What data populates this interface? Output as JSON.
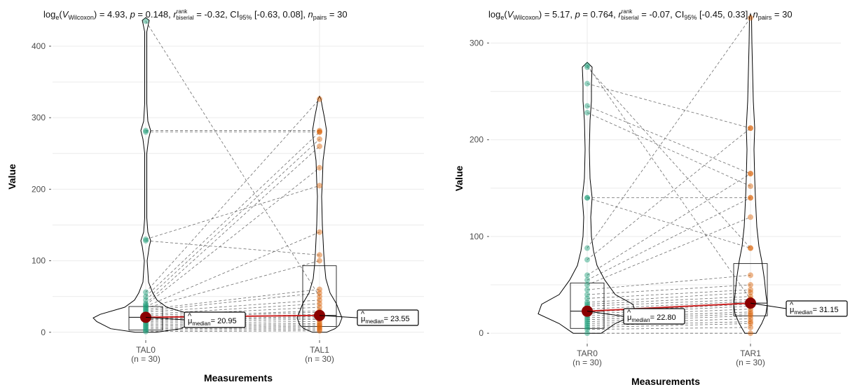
{
  "charts": [
    {
      "title": {
        "stat_prefix": "log",
        "stat_base": "e",
        "stat_symbol": "V",
        "stat_sub": "Wilcoxon",
        "stat_value": ") = 4.93, ",
        "p_label": "p",
        "p_value": " = 0.148, ",
        "r_hat": "r",
        "r_sup": "rank",
        "r_sub": "biserial",
        "r_value": " = -0.32, CI",
        "ci_sub": "95%",
        "ci_value": " [-0.63, 0.08], ",
        "n_label": "n",
        "n_sub": "pairs",
        "n_value": " = 30"
      },
      "xlabel": "Measurements",
      "ylabel": "Value",
      "groups": [
        {
          "name": "TAL0",
          "n_label": "(n = 30)",
          "color": "#1b9e77",
          "median_label": "= 20.95",
          "mu": "μ",
          "mu_sub": "median"
        },
        {
          "name": "TAL1",
          "n_label": "(n = 30)",
          "color": "#d95f02",
          "median_label": "= 23.55",
          "mu": "μ",
          "mu_sub": "median"
        }
      ]
    },
    {
      "title": {
        "stat_prefix": "log",
        "stat_base": "e",
        "stat_symbol": "V",
        "stat_sub": "Wilcoxon",
        "stat_value": ") = 5.17, ",
        "p_label": "p",
        "p_value": " = 0.764, ",
        "r_hat": "r",
        "r_sup": "rank",
        "r_sub": "biserial",
        "r_value": " = -0.07, CI",
        "ci_sub": "95%",
        "ci_value": " [-0.45, 0.33], ",
        "n_label": "n",
        "n_sub": "pairs",
        "n_value": " = 30"
      },
      "xlabel": "Measurements",
      "ylabel": "Value",
      "groups": [
        {
          "name": "TAR0",
          "n_label": "(n = 30)",
          "color": "#1b9e77",
          "median_label": "= 22.80",
          "mu": "μ",
          "mu_sub": "median"
        },
        {
          "name": "TAR1",
          "n_label": "(n = 30)",
          "color": "#d95f02",
          "median_label": "= 31.15",
          "mu": "μ",
          "mu_sub": "median"
        }
      ]
    }
  ],
  "chart_data": [
    {
      "type": "violin-paired",
      "ylim": [
        -10,
        445
      ],
      "yticks": [
        0,
        100,
        200,
        300,
        400
      ],
      "grid": true,
      "medians": [
        20.95,
        23.55
      ],
      "boxes": [
        {
          "q1": 3,
          "median": 20.95,
          "q3": 36
        },
        {
          "q1": 8,
          "median": 23.55,
          "q3": 93
        }
      ],
      "pairs": [
        [
          435,
          50
        ],
        [
          282,
          282
        ],
        [
          280,
          280
        ],
        [
          130,
          205
        ],
        [
          128,
          108
        ],
        [
          56,
          326
        ],
        [
          50,
          280
        ],
        [
          45,
          270
        ],
        [
          40,
          260
        ],
        [
          38,
          230
        ],
        [
          36,
          140
        ],
        [
          34,
          100
        ],
        [
          32,
          60
        ],
        [
          30,
          55
        ],
        [
          28,
          45
        ],
        [
          25,
          40
        ],
        [
          23,
          35
        ],
        [
          21,
          30
        ],
        [
          20,
          28
        ],
        [
          19,
          25
        ],
        [
          18,
          22
        ],
        [
          17,
          20
        ],
        [
          15,
          18
        ],
        [
          13,
          15
        ],
        [
          11,
          12
        ],
        [
          9,
          10
        ],
        [
          7,
          8
        ],
        [
          5,
          6
        ],
        [
          3,
          4
        ],
        [
          1,
          2
        ]
      ],
      "violins": [
        [
          [
            0,
            15
          ],
          [
            5,
            50
          ],
          [
            10,
            60
          ],
          [
            15,
            70
          ],
          [
            20,
            75
          ],
          [
            25,
            65
          ],
          [
            35,
            30
          ],
          [
            45,
            16
          ],
          [
            55,
            10
          ],
          [
            70,
            4
          ],
          [
            100,
            2
          ],
          [
            120,
            5
          ],
          [
            128,
            7
          ],
          [
            140,
            3
          ],
          [
            160,
            1.5
          ],
          [
            250,
            1.5
          ],
          [
            270,
            4
          ],
          [
            282,
            7
          ],
          [
            295,
            3
          ],
          [
            320,
            1.5
          ],
          [
            420,
            1.5
          ],
          [
            432,
            4
          ],
          [
            436,
            5
          ],
          [
            440,
            0
          ]
        ],
        [
          [
            0,
            10
          ],
          [
            5,
            22
          ],
          [
            10,
            28
          ],
          [
            15,
            30
          ],
          [
            20,
            32
          ],
          [
            30,
            28
          ],
          [
            40,
            24
          ],
          [
            55,
            15
          ],
          [
            75,
            9
          ],
          [
            95,
            7
          ],
          [
            110,
            6
          ],
          [
            130,
            5
          ],
          [
            150,
            4
          ],
          [
            190,
            3
          ],
          [
            210,
            4
          ],
          [
            240,
            5
          ],
          [
            270,
            9
          ],
          [
            282,
            10
          ],
          [
            300,
            7
          ],
          [
            315,
            4
          ],
          [
            326,
            2
          ],
          [
            330,
            0
          ]
        ]
      ]
    },
    {
      "type": "violin-paired",
      "ylim": [
        -10,
        330
      ],
      "yticks": [
        0,
        100,
        200,
        300
      ],
      "grid": true,
      "medians": [
        22.8,
        31.15
      ],
      "boxes": [
        {
          "q1": 5,
          "median": 22.8,
          "q3": 52
        },
        {
          "q1": 18,
          "median": 31.15,
          "q3": 72
        }
      ],
      "pairs": [
        [
          277,
          35
        ],
        [
          275,
          88
        ],
        [
          258,
          212
        ],
        [
          235,
          165
        ],
        [
          228,
          152
        ],
        [
          140,
          140
        ],
        [
          140,
          88
        ],
        [
          88,
          326
        ],
        [
          76,
          212
        ],
        [
          60,
          165
        ],
        [
          55,
          140
        ],
        [
          50,
          120
        ],
        [
          45,
          60
        ],
        [
          40,
          50
        ],
        [
          36,
          45
        ],
        [
          32,
          42
        ],
        [
          30,
          38
        ],
        [
          28,
          35
        ],
        [
          25,
          33
        ],
        [
          22,
          30
        ],
        [
          20,
          28
        ],
        [
          18,
          25
        ],
        [
          16,
          22
        ],
        [
          14,
          20
        ],
        [
          12,
          18
        ],
        [
          10,
          15
        ],
        [
          8,
          12
        ],
        [
          6,
          10
        ],
        [
          4,
          6
        ],
        [
          0,
          0
        ]
      ],
      "violins": [
        [
          [
            0,
            20
          ],
          [
            10,
            40
          ],
          [
            20,
            70
          ],
          [
            30,
            65
          ],
          [
            40,
            40
          ],
          [
            55,
            25
          ],
          [
            70,
            14
          ],
          [
            85,
            9
          ],
          [
            100,
            6
          ],
          [
            120,
            5
          ],
          [
            140,
            7
          ],
          [
            160,
            4
          ],
          [
            190,
            3
          ],
          [
            220,
            4
          ],
          [
            240,
            6
          ],
          [
            258,
            6
          ],
          [
            275,
            7
          ],
          [
            280,
            0
          ]
        ],
        [
          [
            0,
            8
          ],
          [
            10,
            16
          ],
          [
            20,
            22
          ],
          [
            30,
            24
          ],
          [
            40,
            22
          ],
          [
            55,
            20
          ],
          [
            75,
            16
          ],
          [
            90,
            12
          ],
          [
            110,
            9
          ],
          [
            140,
            7
          ],
          [
            160,
            6
          ],
          [
            190,
            5
          ],
          [
            212,
            6
          ],
          [
            240,
            4
          ],
          [
            270,
            3
          ],
          [
            300,
            2
          ],
          [
            326,
            1.5
          ],
          [
            330,
            0
          ]
        ]
      ]
    }
  ]
}
